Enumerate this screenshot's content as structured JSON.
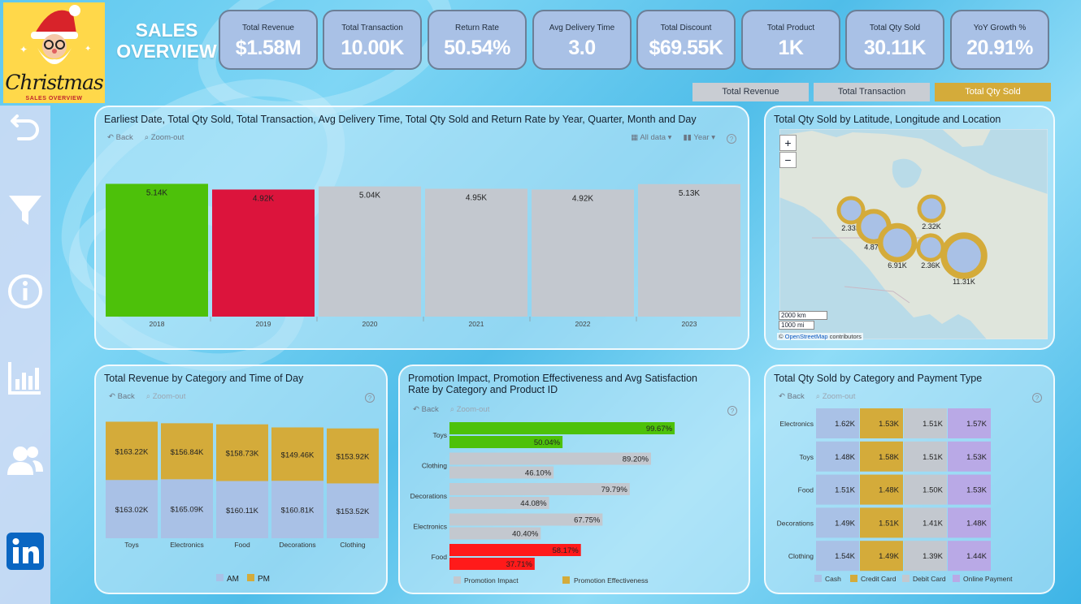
{
  "logo": {
    "text": "Christmas",
    "subtitle": "SALES OVERVIEW"
  },
  "header": {
    "title_line1": "SALES",
    "title_line2": "OVERVIEW"
  },
  "kpis": [
    {
      "label": "Total Revenue",
      "value": "$1.58M"
    },
    {
      "label": "Total Transaction",
      "value": "10.00K"
    },
    {
      "label": "Return Rate",
      "value": "50.54%"
    },
    {
      "label": "Avg Delivery Time",
      "value": "3.0"
    },
    {
      "label": "Total Discount",
      "value": "$69.55K"
    },
    {
      "label": "Total Product",
      "value": "1K"
    },
    {
      "label": "Total Qty Sold",
      "value": "30.11K"
    },
    {
      "label": "YoY Growth %",
      "value": "20.91%"
    }
  ],
  "toggles": [
    {
      "label": "Total Revenue",
      "active": false
    },
    {
      "label": "Total Transaction",
      "active": false
    },
    {
      "label": "Total Qty Sold",
      "active": true
    }
  ],
  "sidebar_icons": [
    "back-arrow-icon",
    "filter-icon",
    "info-icon",
    "bar-chart-icon",
    "users-icon",
    "linkedin-icon"
  ],
  "toolbar": {
    "back": "Back",
    "zoom_out": "Zoom-out",
    "all_data": "All data",
    "year": "Year",
    "help": "?"
  },
  "panels": {
    "yearly": {
      "title": "Earliest Date, Total Qty Sold, Total Transaction, Avg Delivery Time, Total Qty Sold and Return Rate by Year, Quarter, Month and Day"
    },
    "map": {
      "title": "Total Qty Sold by Latitude, Longitude and Location",
      "zoom_in": "+",
      "zoom_out": "−",
      "scale_km": "2000 km",
      "scale_mi": "1000 mi",
      "attribution_symbol": "©",
      "attribution_link": "OpenStreetMap",
      "attribution_rest": "contributors",
      "points": [
        {
          "label": "2.33K",
          "value": 2.33
        },
        {
          "label": "4.87K",
          "value": 4.87
        },
        {
          "label": "6.91K",
          "value": 6.91
        },
        {
          "label": "2.32K",
          "value": 2.32
        },
        {
          "label": "2.36K",
          "value": 2.36
        },
        {
          "label": "11.31K",
          "value": 11.31
        }
      ]
    },
    "revenue": {
      "title": "Total Revenue by Category and Time of Day"
    },
    "promotion": {
      "title_line1": "Promotion Impact, Promotion Effectiveness and Avg Satisfaction",
      "title_line2": "Rate by Category and Product ID"
    },
    "payment": {
      "title": "Total Qty Sold by Category and Payment Type"
    }
  },
  "colors": {
    "green": "#4dc10a",
    "red": "#dc143c",
    "gray": "#c3c8cf",
    "gold": "#d4ab3a",
    "lightblue": "#a9c1e6",
    "lavender": "#b9a9e6",
    "bright_red": "#ff1a1a"
  },
  "chart_data": [
    {
      "type": "bar",
      "categories": [
        "2018",
        "2019",
        "2020",
        "2021",
        "2022",
        "2023"
      ],
      "values": [
        5.14,
        4.92,
        5.04,
        4.95,
        4.92,
        5.13
      ],
      "labels": [
        "5.14K",
        "4.92K",
        "5.04K",
        "4.95K",
        "4.92K",
        "5.13K"
      ],
      "ylim": [
        0,
        5.5
      ]
    },
    {
      "type": "bar",
      "stacked": true,
      "categories": [
        "Toys",
        "Electronics",
        "Food",
        "Decorations",
        "Clothing"
      ],
      "series": [
        {
          "name": "AM",
          "values": [
            163.02,
            165.09,
            160.11,
            160.81,
            153.52
          ],
          "labels": [
            "$163.02K",
            "$165.09K",
            "$160.11K",
            "$160.81K",
            "$153.52K"
          ]
        },
        {
          "name": "PM",
          "values": [
            163.22,
            156.84,
            158.73,
            149.46,
            153.92
          ],
          "labels": [
            "$163.22K",
            "$156.84K",
            "$158.73K",
            "$149.46K",
            "$153.92K"
          ]
        }
      ],
      "legend": "bottom"
    },
    {
      "type": "bar",
      "orientation": "horizontal",
      "categories": [
        "Toys",
        "Clothing",
        "Decorations",
        "Electronics",
        "Food"
      ],
      "series": [
        {
          "name": "Promotion Impact",
          "values": [
            99.67,
            89.2,
            79.79,
            67.75,
            58.17
          ],
          "labels": [
            "99.67%",
            "89.20%",
            "79.79%",
            "67.75%",
            "58.17%"
          ]
        },
        {
          "name": "Promotion Effectiveness",
          "values": [
            50.04,
            46.1,
            44.08,
            40.4,
            37.71
          ],
          "labels": [
            "50.04%",
            "46.10%",
            "44.08%",
            "40.40%",
            "37.71%"
          ]
        }
      ],
      "xlim": [
        0,
        100
      ],
      "legend": "bottom"
    },
    {
      "type": "table",
      "rows": [
        "Electronics",
        "Toys",
        "Food",
        "Decorations",
        "Clothing"
      ],
      "series": [
        {
          "name": "Cash",
          "values": [
            1.62,
            1.48,
            1.51,
            1.49,
            1.54
          ],
          "labels": [
            "1.62K",
            "1.48K",
            "1.51K",
            "1.49K",
            "1.54K"
          ]
        },
        {
          "name": "Credit Card",
          "values": [
            1.53,
            1.58,
            1.48,
            1.51,
            1.49
          ],
          "labels": [
            "1.53K",
            "1.58K",
            "1.48K",
            "1.51K",
            "1.49K"
          ]
        },
        {
          "name": "Debit Card",
          "values": [
            1.51,
            1.51,
            1.5,
            1.41,
            1.39
          ],
          "labels": [
            "1.51K",
            "1.51K",
            "1.50K",
            "1.41K",
            "1.39K"
          ]
        },
        {
          "name": "Online Payment",
          "values": [
            1.57,
            1.53,
            1.53,
            1.48,
            1.44
          ],
          "labels": [
            "1.57K",
            "1.53K",
            "1.53K",
            "1.48K",
            "1.44K"
          ]
        }
      ],
      "legend": "bottom"
    }
  ]
}
